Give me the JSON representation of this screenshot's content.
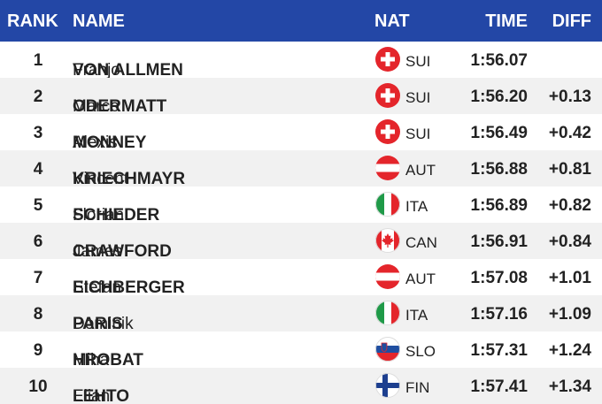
{
  "header": {
    "rank": "RANK",
    "name": "NAME",
    "nat": "NAT",
    "time": "TIME",
    "diff": "DIFF"
  },
  "table": {
    "rows": [
      {
        "rank": 1,
        "surname": "VON ALLMEN",
        "given": "Franjo",
        "nat": "SUI",
        "time": "1:56.07"
      },
      {
        "rank": 2,
        "surname": "ODERMATT",
        "given": "Marco",
        "nat": "SUI",
        "time": "1:56.20",
        "diff": "+0.13"
      },
      {
        "rank": 3,
        "surname": "MONNEY",
        "given": "Alexis",
        "nat": "SUI",
        "time": "1:56.49",
        "diff": "+0.42"
      },
      {
        "rank": 4,
        "surname": "KRIECHMAYR",
        "given": "Vincent",
        "nat": "AUT",
        "time": "1:56.88",
        "diff": "+0.81"
      },
      {
        "rank": 5,
        "surname": "SCHIEDER",
        "given": "Florian",
        "nat": "ITA",
        "time": "1:56.89",
        "diff": "+0.82"
      },
      {
        "rank": 6,
        "surname": "CRAWFORD",
        "given": "James",
        "nat": "CAN",
        "time": "1:56.91",
        "diff": "+0.84"
      },
      {
        "rank": 7,
        "surname": "EICHBERGER",
        "given": "Stefan",
        "nat": "AUT",
        "time": "1:57.08",
        "diff": "+1.01"
      },
      {
        "rank": 8,
        "surname": "PARIS",
        "given": "Dominik",
        "nat": "ITA",
        "time": "1:57.16",
        "diff": "+1.09"
      },
      {
        "rank": 9,
        "surname": "HROBAT",
        "given": "Miha",
        "nat": "SLO",
        "time": "1:57.31",
        "diff": "+1.24"
      },
      {
        "rank": 10,
        "surname": "LEHTO",
        "given": "Elian",
        "nat": "FIN",
        "time": "1:57.41",
        "diff": "+1.34"
      }
    ]
  }
}
